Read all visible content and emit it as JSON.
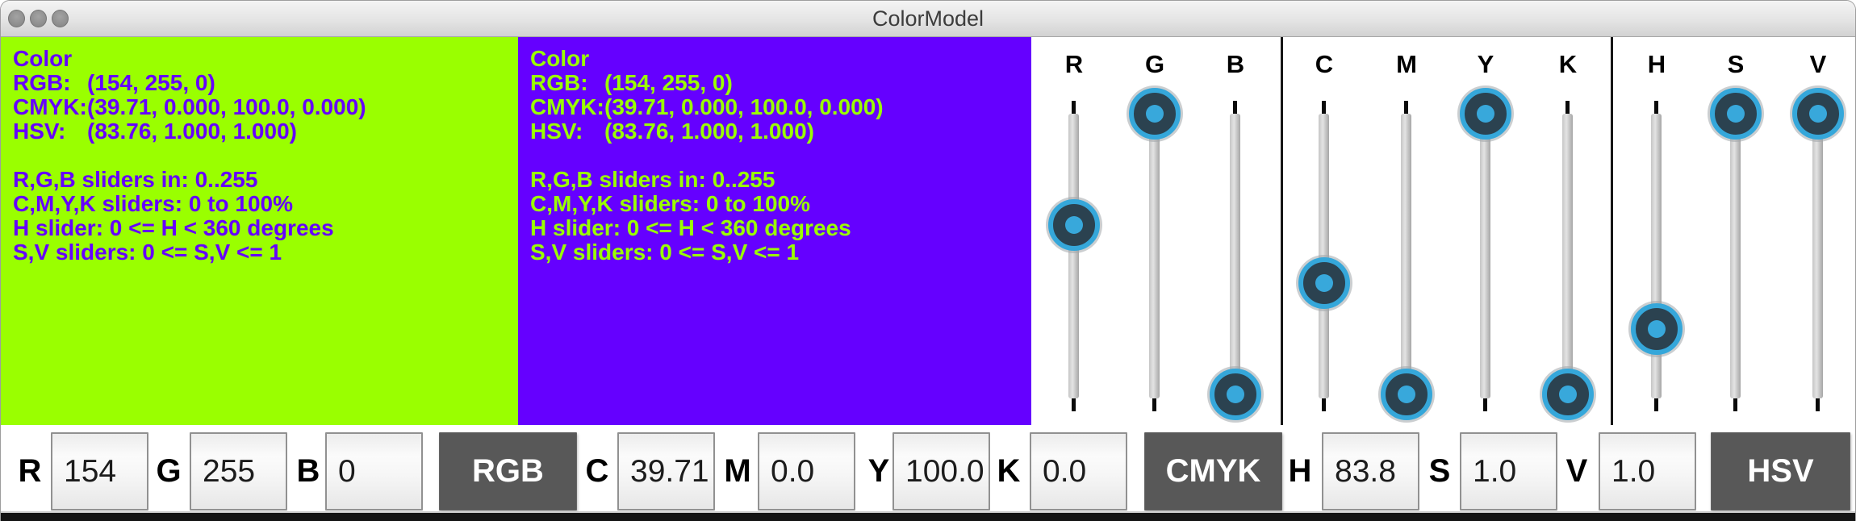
{
  "window": {
    "title": "ColorModel"
  },
  "colors": {
    "primary_green": "#9AFF00",
    "complement_purple": "#6500FF",
    "thumb_ring": "#35A7DA",
    "thumb_body": "#2B4250",
    "thumb_dot": "#38A8DB",
    "button_bg": "#585858"
  },
  "info_lines": [
    {
      "label": "Color",
      "value": ""
    },
    {
      "label": "RGB:",
      "value": "(154, 255, 0)"
    },
    {
      "label": "CMYK:",
      "value": "(39.71, 0.000, 100.0, 0.000)"
    },
    {
      "label": "HSV:",
      "value": "(83.76, 1.000, 1.000)"
    },
    {
      "label": "",
      "value": ""
    },
    {
      "label": "R,G,B sliders in: 0..255",
      "value": ""
    },
    {
      "label": "C,M,Y,K sliders: 0 to 100%",
      "value": ""
    },
    {
      "label": "H slider: 0 <= H < 360 degrees",
      "value": ""
    },
    {
      "label": "S,V sliders: 0 <= S,V <= 1",
      "value": ""
    }
  ],
  "sliders": [
    {
      "label": "R",
      "value": 154,
      "max": 255
    },
    {
      "label": "G",
      "value": 255,
      "max": 255
    },
    {
      "label": "B",
      "value": 0,
      "max": 255
    },
    {
      "label": "C",
      "value": 39.71,
      "max": 100
    },
    {
      "label": "M",
      "value": 0,
      "max": 100
    },
    {
      "label": "Y",
      "value": 100,
      "max": 100
    },
    {
      "label": "K",
      "value": 0,
      "max": 100
    },
    {
      "label": "H",
      "value": 83.8,
      "max": 360
    },
    {
      "label": "S",
      "value": 1,
      "max": 1
    },
    {
      "label": "V",
      "value": 1,
      "max": 1
    }
  ],
  "controls": {
    "fields": [
      {
        "label": "R",
        "value": "154"
      },
      {
        "label": "G",
        "value": "255"
      },
      {
        "label": "B",
        "value": "0"
      },
      {
        "label": "C",
        "value": "39.71"
      },
      {
        "label": "M",
        "value": "0.0"
      },
      {
        "label": "Y",
        "value": "100.0"
      },
      {
        "label": "K",
        "value": "0.0"
      },
      {
        "label": "H",
        "value": "83.8"
      },
      {
        "label": "S",
        "value": "1.0"
      },
      {
        "label": "V",
        "value": "1.0"
      }
    ],
    "buttons": [
      {
        "label": "RGB"
      },
      {
        "label": "CMYK"
      },
      {
        "label": "HSV"
      }
    ]
  }
}
